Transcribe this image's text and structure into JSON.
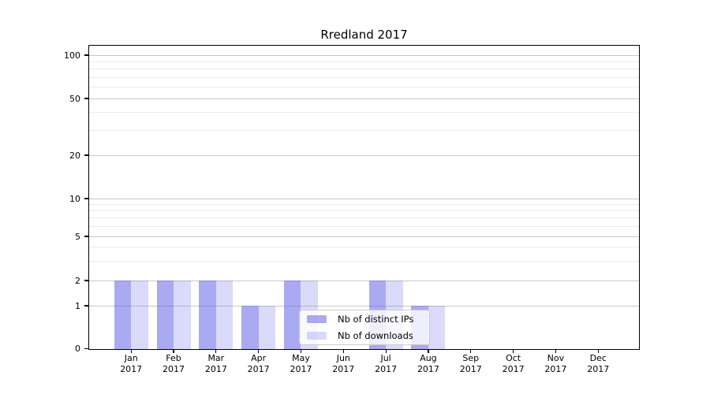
{
  "title": "Rredland 2017",
  "legend": {
    "entries": [
      {
        "label": "Nb of distinct IPs",
        "series_key": "ips"
      },
      {
        "label": "Nb of downloads",
        "series_key": "downloads"
      }
    ]
  },
  "colors": {
    "bar_ips": "rgba(85,85,230,0.5)",
    "bar_downloads": "rgba(85,85,230,0.22)",
    "grid_major": "#c9c9c9",
    "grid_minor": "#ebebeb",
    "axis": "#000000",
    "legend_border": "#cccccc",
    "legend_bg": "rgba(255,255,255,0.8)",
    "text": "#000000"
  },
  "chart_data": {
    "type": "bar",
    "title": "Rredland 2017",
    "categories": [
      "Jan",
      "Feb",
      "Mar",
      "Apr",
      "May",
      "Jun",
      "Jul",
      "Aug",
      "Sep",
      "Oct",
      "Nov",
      "Dec"
    ],
    "x_tick_year": "2017",
    "series": [
      {
        "name": "Nb of distinct IPs",
        "values": [
          2,
          2,
          2,
          1,
          2,
          0,
          2,
          1,
          0,
          0,
          0,
          0
        ]
      },
      {
        "name": "Nb of downloads",
        "values": [
          2,
          2,
          2,
          1,
          2,
          0,
          2,
          1,
          0,
          0,
          0,
          0
        ]
      }
    ],
    "yticks": [
      0,
      1,
      2,
      5,
      10,
      20,
      50,
      100
    ],
    "minor_yticks": [
      3,
      4,
      6,
      7,
      8,
      9,
      30,
      40,
      60,
      70,
      80,
      90
    ],
    "ylim": [
      0,
      116
    ],
    "yscale": "log-like with linear 0-1 segment",
    "grid": "horizontal major and minor",
    "legend_position": "lower center inside plot",
    "xlabel": "",
    "ylabel": ""
  }
}
